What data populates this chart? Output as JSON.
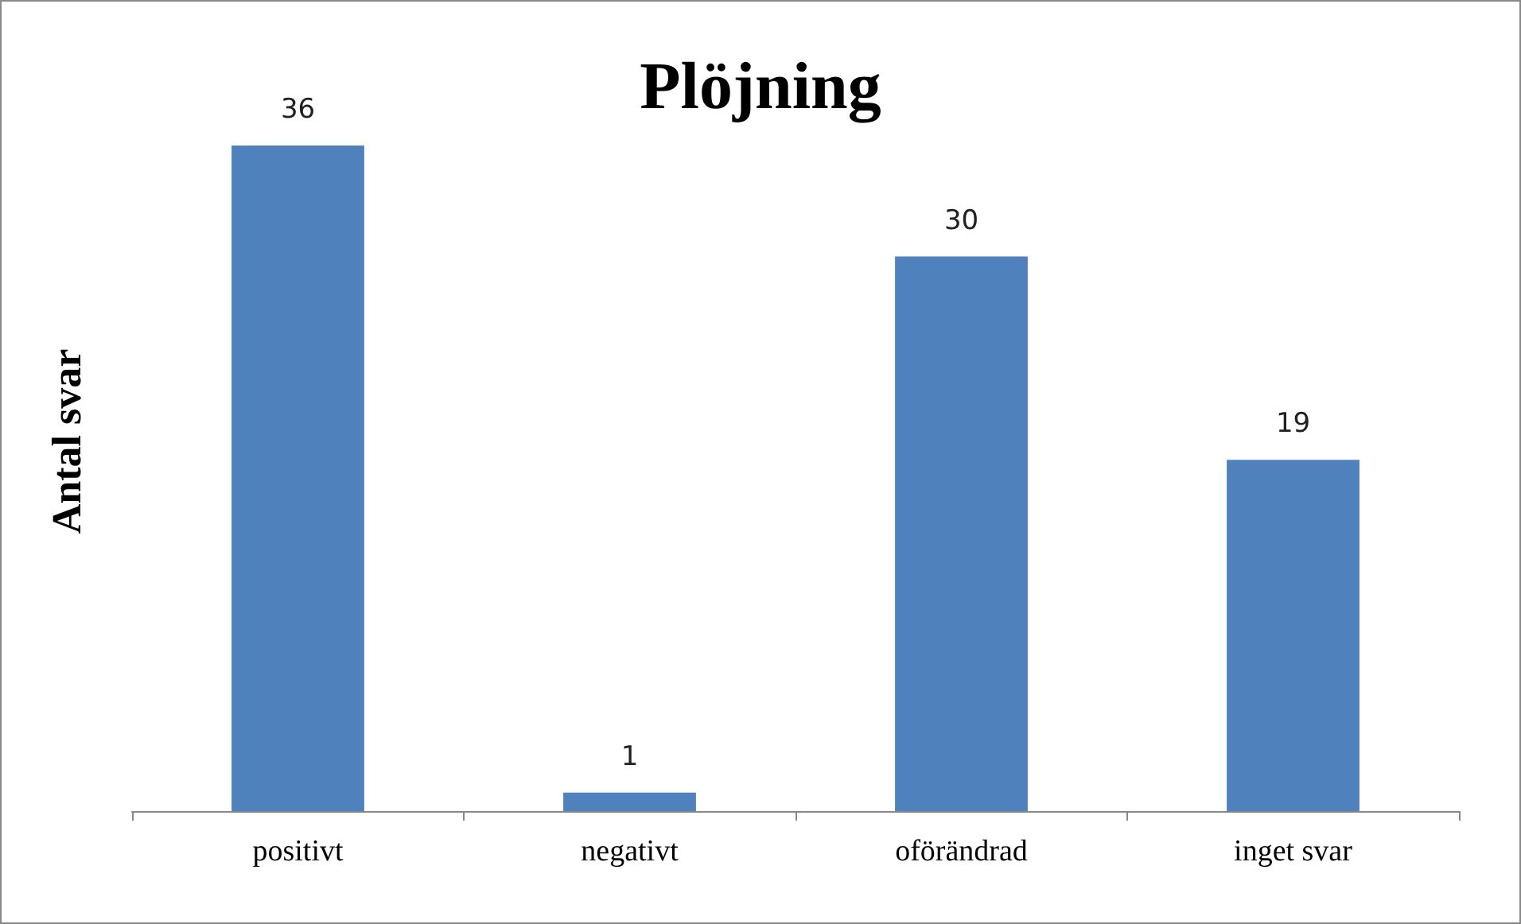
{
  "chart_data": {
    "type": "bar",
    "title": "Plöjning",
    "ylabel": "Antal svar",
    "categories": [
      "positivt",
      "negativt",
      "oförändrad",
      "inget svar"
    ],
    "values": [
      36,
      1,
      30,
      19
    ],
    "color": "#4f81bd",
    "data_labels": true
  }
}
